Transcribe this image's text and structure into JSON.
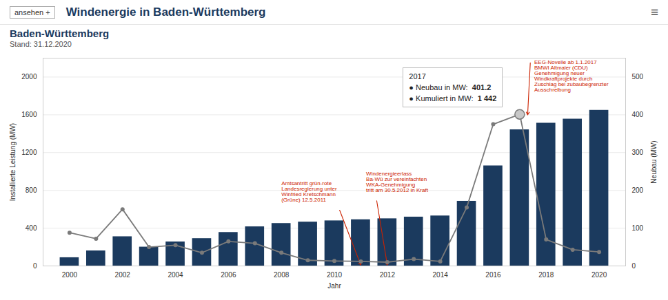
{
  "chart_data": {
    "type": "bar",
    "header": "Windenergie in Baden-Württemberg",
    "header_button": "ansehen +",
    "header_menu": "≡",
    "title": "Baden-Württemberg",
    "subtitle": "Stand: 31.12.2020",
    "title_color": "#1b3a5e",
    "x_label": "Jahr",
    "y_label": "Installierte Leistung (MW)",
    "y2_label": "Neubau (MW)",
    "x": [
      2000,
      2001,
      2002,
      2003,
      2004,
      2005,
      2006,
      2007,
      2008,
      2009,
      2010,
      2011,
      2012,
      2013,
      2014,
      2015,
      2016,
      2017,
      2018,
      2019,
      2020
    ],
    "xlim": [
      1999,
      2021
    ],
    "xticks": [
      2000,
      2002,
      2004,
      2006,
      2008,
      2010,
      2012,
      2014,
      2016,
      2018,
      2020
    ],
    "ylim": [
      0,
      2200
    ],
    "yticks": [
      0,
      400,
      800,
      1200,
      1600,
      2000
    ],
    "y2lim": [
      0,
      550
    ],
    "y2ticks": [
      0,
      100,
      200,
      300,
      400,
      500
    ],
    "grid": true,
    "series": [
      {
        "type": "bar",
        "color": "#1b3a5e",
        "values": [
          88,
          160,
          310,
          200,
          255,
          290,
          355,
          415,
          450,
          465,
          478,
          490,
          500,
          518,
          530,
          685,
          1060,
          1442,
          1512,
          1555,
          1648
        ]
      },
      {
        "type": "line",
        "axis": "y2",
        "color": "#7a7a7a",
        "marker": "circle",
        "values": [
          88,
          72,
          150,
          50,
          55,
          35,
          65,
          60,
          35,
          15,
          13,
          12,
          10,
          18,
          12,
          155,
          375,
          401.2,
          70,
          43,
          37
        ]
      }
    ],
    "annotation_color": "#cc2200",
    "annotations": [
      {
        "text": "Amtsantritt grün-rote\nLandesregierung unter\nWinfried Kretschmann\n(Grüne) 12.5.2011",
        "x": 2011,
        "y": 10
      },
      {
        "text": "Windenergieerlass\nBa-Wü zur vereinfachten\nWKA-Genehmigung\ntritt am 30.5.2012 in Kraft",
        "x": 2012,
        "y": 10
      },
      {
        "text": "EEG-Novelle ab 1.1.2017\nBMWI Altmaier (CDU)\nGenehmigung neuer\nWindkraftprojekte durch\nZuschlag bei zubaubegrenzter\nAusschreibung",
        "x": 2017.3,
        "y": 1600
      }
    ],
    "tooltip": {
      "x": 2017,
      "color": "#c8c8c8",
      "lines": [
        {
          "label": "● Neubau in MW:",
          "value": 401.2
        },
        {
          "label": "● Kumuliert in MW:",
          "value": 1442,
          "value_label": "1 442"
        }
      ]
    }
  }
}
